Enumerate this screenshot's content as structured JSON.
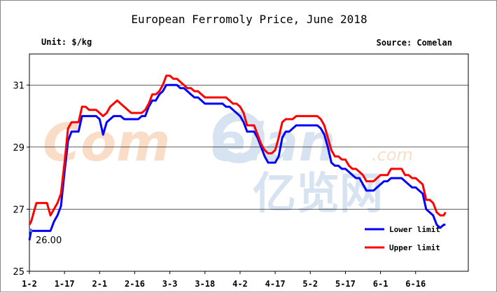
{
  "chart_data": {
    "type": "line",
    "title": "European Ferromoly Price, June 2018",
    "unit_label": "Unit: $/kg",
    "source_label": "Source: Comelan",
    "watermark": "Comelan.com 亿览网",
    "xlabel": "",
    "ylabel": "",
    "ylim": [
      25,
      32
    ],
    "yticks": [
      25,
      27,
      29,
      31
    ],
    "xlim": [
      0,
      125
    ],
    "x_tick_labels": [
      "1-2",
      "1-17",
      "2-1",
      "2-16",
      "3-3",
      "3-18",
      "4-2",
      "4-17",
      "5-2",
      "5-17",
      "6-1",
      "6-16"
    ],
    "x_tick_positions": [
      0,
      10,
      20,
      30,
      40,
      50,
      60,
      70,
      80,
      90,
      100,
      110
    ],
    "grid": true,
    "legend_position": "bottom-right",
    "annotation": "26.00",
    "series": [
      {
        "name": "Lower limit",
        "color": "#0000ff",
        "points": [
          [
            0,
            26.0
          ],
          [
            0.5,
            26.3
          ],
          [
            1,
            26.3
          ],
          [
            2,
            26.3
          ],
          [
            3,
            26.3
          ],
          [
            4,
            26.3
          ],
          [
            5,
            26.3
          ],
          [
            6,
            26.3
          ],
          [
            7,
            26.6
          ],
          [
            8,
            26.8
          ],
          [
            9,
            27.1
          ],
          [
            10,
            28.2
          ],
          [
            11,
            29.2
          ],
          [
            12,
            29.5
          ],
          [
            13,
            29.5
          ],
          [
            14,
            29.5
          ],
          [
            15,
            30.0
          ],
          [
            16,
            30.0
          ],
          [
            17,
            30.0
          ],
          [
            18,
            30.0
          ],
          [
            19,
            30.0
          ],
          [
            20,
            29.9
          ],
          [
            21,
            29.4
          ],
          [
            22,
            29.8
          ],
          [
            23,
            29.9
          ],
          [
            24,
            30.0
          ],
          [
            25,
            30.0
          ],
          [
            26,
            30.0
          ],
          [
            27,
            29.9
          ],
          [
            28,
            29.9
          ],
          [
            29,
            29.9
          ],
          [
            30,
            29.9
          ],
          [
            31,
            29.9
          ],
          [
            32,
            30.0
          ],
          [
            33,
            30.0
          ],
          [
            34,
            30.3
          ],
          [
            35,
            30.5
          ],
          [
            36,
            30.5
          ],
          [
            37,
            30.7
          ],
          [
            38,
            30.8
          ],
          [
            39,
            31.0
          ],
          [
            40,
            31.0
          ],
          [
            41,
            31.0
          ],
          [
            42,
            31.0
          ],
          [
            43,
            30.9
          ],
          [
            44,
            30.9
          ],
          [
            45,
            30.8
          ],
          [
            46,
            30.7
          ],
          [
            47,
            30.6
          ],
          [
            48,
            30.6
          ],
          [
            49,
            30.5
          ],
          [
            50,
            30.4
          ],
          [
            51,
            30.4
          ],
          [
            52,
            30.4
          ],
          [
            53,
            30.4
          ],
          [
            54,
            30.4
          ],
          [
            55,
            30.4
          ],
          [
            56,
            30.3
          ],
          [
            57,
            30.3
          ],
          [
            58,
            30.2
          ],
          [
            59,
            30.1
          ],
          [
            60,
            30.0
          ],
          [
            61,
            29.8
          ],
          [
            62,
            29.5
          ],
          [
            63,
            29.5
          ],
          [
            64,
            29.5
          ],
          [
            65,
            29.3
          ],
          [
            66,
            29.0
          ],
          [
            67,
            28.7
          ],
          [
            68,
            28.5
          ],
          [
            69,
            28.5
          ],
          [
            70,
            28.5
          ],
          [
            71,
            28.7
          ],
          [
            72,
            29.3
          ],
          [
            73,
            29.5
          ],
          [
            74,
            29.5
          ],
          [
            75,
            29.6
          ],
          [
            76,
            29.7
          ],
          [
            77,
            29.7
          ],
          [
            78,
            29.7
          ],
          [
            79,
            29.7
          ],
          [
            80,
            29.7
          ],
          [
            81,
            29.7
          ],
          [
            82,
            29.7
          ],
          [
            83,
            29.6
          ],
          [
            84,
            29.4
          ],
          [
            85,
            29.0
          ],
          [
            86,
            28.5
          ],
          [
            87,
            28.4
          ],
          [
            88,
            28.4
          ],
          [
            89,
            28.3
          ],
          [
            90,
            28.3
          ],
          [
            91,
            28.2
          ],
          [
            92,
            28.1
          ],
          [
            93,
            28.0
          ],
          [
            94,
            28.0
          ],
          [
            95,
            27.8
          ],
          [
            96,
            27.6
          ],
          [
            97,
            27.6
          ],
          [
            98,
            27.6
          ],
          [
            99,
            27.7
          ],
          [
            100,
            27.8
          ],
          [
            101,
            27.9
          ],
          [
            102,
            27.9
          ],
          [
            103,
            28.0
          ],
          [
            104,
            28.0
          ],
          [
            105,
            28.0
          ],
          [
            106,
            28.0
          ],
          [
            107,
            27.9
          ],
          [
            108,
            27.8
          ],
          [
            109,
            27.7
          ],
          [
            110,
            27.7
          ],
          [
            111,
            27.6
          ],
          [
            112,
            27.5
          ],
          [
            113,
            27.0
          ],
          [
            114,
            26.9
          ],
          [
            115,
            26.8
          ],
          [
            116,
            26.5
          ],
          [
            117,
            26.4
          ],
          [
            118,
            26.5
          ],
          [
            118.5,
            26.5
          ]
        ]
      },
      {
        "name": "Upper limit",
        "color": "#ff0000",
        "points": [
          [
            0,
            26.5
          ],
          [
            0.5,
            26.6
          ],
          [
            1,
            26.8
          ],
          [
            2,
            27.2
          ],
          [
            3,
            27.2
          ],
          [
            4,
            27.2
          ],
          [
            5,
            27.2
          ],
          [
            6,
            26.8
          ],
          [
            7,
            27.0
          ],
          [
            8,
            27.2
          ],
          [
            9,
            27.5
          ],
          [
            10,
            28.5
          ],
          [
            11,
            29.6
          ],
          [
            12,
            29.8
          ],
          [
            13,
            29.8
          ],
          [
            14,
            29.8
          ],
          [
            15,
            30.3
          ],
          [
            16,
            30.3
          ],
          [
            17,
            30.2
          ],
          [
            18,
            30.2
          ],
          [
            19,
            30.2
          ],
          [
            20,
            30.1
          ],
          [
            21,
            30.0
          ],
          [
            22,
            30.1
          ],
          [
            23,
            30.3
          ],
          [
            24,
            30.4
          ],
          [
            25,
            30.5
          ],
          [
            26,
            30.4
          ],
          [
            27,
            30.3
          ],
          [
            28,
            30.2
          ],
          [
            29,
            30.1
          ],
          [
            30,
            30.1
          ],
          [
            31,
            30.1
          ],
          [
            32,
            30.1
          ],
          [
            33,
            30.2
          ],
          [
            34,
            30.4
          ],
          [
            35,
            30.7
          ],
          [
            36,
            30.7
          ],
          [
            37,
            30.8
          ],
          [
            38,
            31.0
          ],
          [
            39,
            31.3
          ],
          [
            40,
            31.3
          ],
          [
            41,
            31.2
          ],
          [
            42,
            31.2
          ],
          [
            43,
            31.1
          ],
          [
            44,
            31.0
          ],
          [
            45,
            30.9
          ],
          [
            46,
            30.9
          ],
          [
            47,
            30.8
          ],
          [
            48,
            30.8
          ],
          [
            49,
            30.7
          ],
          [
            50,
            30.6
          ],
          [
            51,
            30.6
          ],
          [
            52,
            30.6
          ],
          [
            53,
            30.6
          ],
          [
            54,
            30.6
          ],
          [
            55,
            30.6
          ],
          [
            56,
            30.6
          ],
          [
            57,
            30.5
          ],
          [
            58,
            30.4
          ],
          [
            59,
            30.4
          ],
          [
            60,
            30.3
          ],
          [
            61,
            30.1
          ],
          [
            62,
            29.7
          ],
          [
            63,
            29.7
          ],
          [
            64,
            29.7
          ],
          [
            65,
            29.4
          ],
          [
            66,
            29.1
          ],
          [
            67,
            28.9
          ],
          [
            68,
            28.8
          ],
          [
            69,
            28.8
          ],
          [
            70,
            28.9
          ],
          [
            71,
            29.3
          ],
          [
            72,
            29.8
          ],
          [
            73,
            29.9
          ],
          [
            74,
            29.9
          ],
          [
            75,
            29.9
          ],
          [
            76,
            30.0
          ],
          [
            77,
            30.0
          ],
          [
            78,
            30.0
          ],
          [
            79,
            30.0
          ],
          [
            80,
            30.0
          ],
          [
            81,
            30.0
          ],
          [
            82,
            30.0
          ],
          [
            83,
            29.9
          ],
          [
            84,
            29.7
          ],
          [
            85,
            29.3
          ],
          [
            86,
            28.9
          ],
          [
            87,
            28.7
          ],
          [
            88,
            28.7
          ],
          [
            89,
            28.6
          ],
          [
            90,
            28.6
          ],
          [
            91,
            28.4
          ],
          [
            92,
            28.3
          ],
          [
            93,
            28.3
          ],
          [
            94,
            28.2
          ],
          [
            95,
            28.1
          ],
          [
            96,
            27.9
          ],
          [
            97,
            27.9
          ],
          [
            98,
            27.9
          ],
          [
            99,
            28.0
          ],
          [
            100,
            28.1
          ],
          [
            101,
            28.1
          ],
          [
            102,
            28.1
          ],
          [
            103,
            28.3
          ],
          [
            104,
            28.3
          ],
          [
            105,
            28.3
          ],
          [
            106,
            28.3
          ],
          [
            107,
            28.1
          ],
          [
            108,
            28.1
          ],
          [
            109,
            28.0
          ],
          [
            110,
            28.0
          ],
          [
            111,
            27.9
          ],
          [
            112,
            27.8
          ],
          [
            113,
            27.3
          ],
          [
            114,
            27.3
          ],
          [
            115,
            27.2
          ],
          [
            116,
            26.9
          ],
          [
            117,
            26.8
          ],
          [
            118,
            26.8
          ],
          [
            118.5,
            26.9
          ]
        ]
      }
    ]
  }
}
